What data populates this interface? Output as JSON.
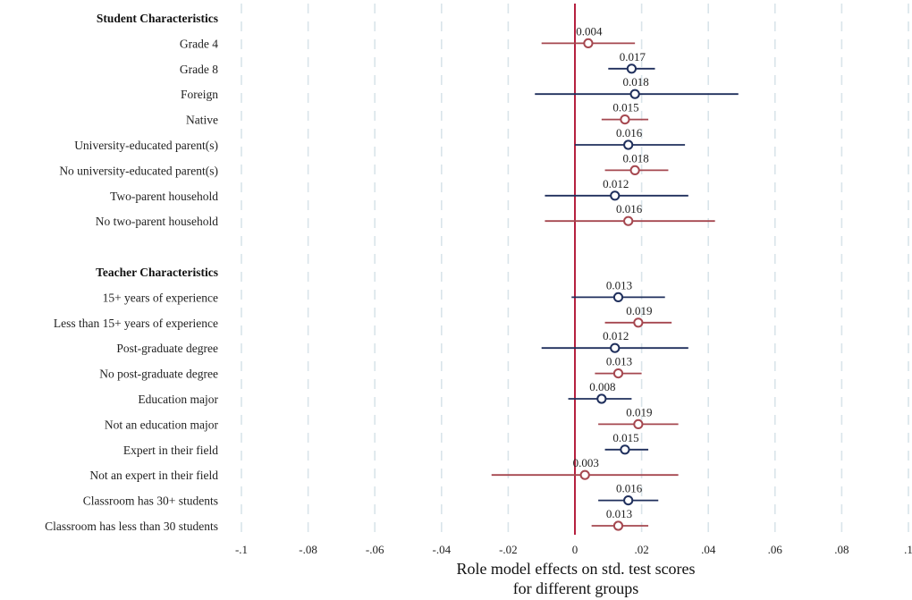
{
  "chart_data": {
    "type": "scatter",
    "xlabel_lines": [
      "Role model effects on std. test scores",
      "for different groups"
    ],
    "xlim": [
      -0.1,
      0.1
    ],
    "xticks": [
      -0.1,
      -0.08,
      -0.06,
      -0.04,
      -0.02,
      0,
      0.02,
      0.04,
      0.06,
      0.08,
      0.1
    ],
    "xtick_labels": [
      "-.1",
      "-.08",
      "-.06",
      "-.04",
      "-.02",
      "0",
      ".02",
      ".04",
      ".06",
      ".08",
      ".1"
    ],
    "grid": "vertical dashed",
    "reference_line_x": 0,
    "colors": {
      "navy": "#1f2f5c",
      "maroon": "#a5474f",
      "reference": "#b5203f",
      "grid": "#d9e4ea"
    },
    "groups": [
      {
        "header": "Student Characteristics",
        "rows": [
          {
            "label": "Grade 4",
            "estimate": 0.004,
            "estimate_label": "0.004",
            "ci": [
              -0.01,
              0.018
            ],
            "color": "maroon"
          },
          {
            "label": "Grade 8",
            "estimate": 0.017,
            "estimate_label": "0.017",
            "ci": [
              0.01,
              0.024
            ],
            "color": "navy"
          },
          {
            "label": "Foreign",
            "estimate": 0.018,
            "estimate_label": "0.018",
            "ci": [
              -0.012,
              0.049
            ],
            "color": "navy"
          },
          {
            "label": "Native",
            "estimate": 0.015,
            "estimate_label": "0.015",
            "ci": [
              0.008,
              0.022
            ],
            "color": "maroon"
          },
          {
            "label": "University-educated parent(s)",
            "estimate": 0.016,
            "estimate_label": "0.016",
            "ci": [
              0.0,
              0.033
            ],
            "color": "navy"
          },
          {
            "label": "No university-educated parent(s)",
            "estimate": 0.018,
            "estimate_label": "0.018",
            "ci": [
              0.009,
              0.028
            ],
            "color": "maroon"
          },
          {
            "label": "Two-parent household",
            "estimate": 0.012,
            "estimate_label": "0.012",
            "ci": [
              -0.009,
              0.034
            ],
            "color": "navy"
          },
          {
            "label": "No two-parent household",
            "estimate": 0.016,
            "estimate_label": "0.016",
            "ci": [
              -0.009,
              0.042
            ],
            "color": "maroon"
          }
        ]
      },
      {
        "header": "Teacher Characteristics",
        "rows": [
          {
            "label": "15+ years of experience",
            "estimate": 0.013,
            "estimate_label": "0.013",
            "ci": [
              -0.001,
              0.027
            ],
            "color": "navy"
          },
          {
            "label": "Less than 15+ years of experience",
            "estimate": 0.019,
            "estimate_label": "0.019",
            "ci": [
              0.009,
              0.029
            ],
            "color": "maroon"
          },
          {
            "label": "Post-graduate degree",
            "estimate": 0.012,
            "estimate_label": "0.012",
            "ci": [
              -0.01,
              0.034
            ],
            "color": "navy"
          },
          {
            "label": "No post-graduate degree",
            "estimate": 0.013,
            "estimate_label": "0.013",
            "ci": [
              0.006,
              0.02
            ],
            "color": "maroon"
          },
          {
            "label": "Education major",
            "estimate": 0.008,
            "estimate_label": "0.008",
            "ci": [
              -0.002,
              0.017
            ],
            "color": "navy"
          },
          {
            "label": "Not an education major",
            "estimate": 0.019,
            "estimate_label": "0.019",
            "ci": [
              0.007,
              0.031
            ],
            "color": "maroon"
          },
          {
            "label": "Expert in their field",
            "estimate": 0.015,
            "estimate_label": "0.015",
            "ci": [
              0.009,
              0.022
            ],
            "color": "navy"
          },
          {
            "label": "Not an expert in their field",
            "estimate": 0.003,
            "estimate_label": "0.003",
            "ci": [
              -0.025,
              0.031
            ],
            "color": "maroon"
          },
          {
            "label": "Classroom has 30+ students",
            "estimate": 0.016,
            "estimate_label": "0.016",
            "ci": [
              0.007,
              0.025
            ],
            "color": "navy"
          },
          {
            "label": "Classroom has less than 30 students",
            "estimate": 0.013,
            "estimate_label": "0.013",
            "ci": [
              0.005,
              0.022
            ],
            "color": "maroon"
          }
        ]
      }
    ]
  }
}
